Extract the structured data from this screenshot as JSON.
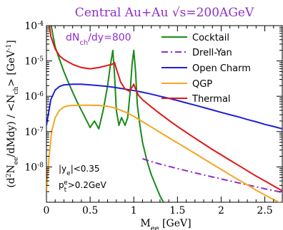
{
  "chart_data": {
    "type": "line",
    "title": "Central Au+Au   √s=200AGeV",
    "xlabel_main": "M",
    "xlabel_sub": "ee",
    "xlabel_unit": " [GeV]",
    "ylabel": "(d²N_ee/dMdy) / <N_ch> [GeV⁻¹]",
    "xlim": [
      0,
      2.7
    ],
    "ylim": [
      1e-09,
      0.0001
    ],
    "yscale": "log",
    "x_ticks": [
      "0",
      "0.5",
      "1",
      "1.5",
      "2",
      "2.5"
    ],
    "x_tick_values": [
      0,
      0.5,
      1,
      1.5,
      2,
      2.5
    ],
    "y_tick_values": [
      1e-08,
      1e-07,
      1e-06,
      1e-05,
      0.0001
    ],
    "annotation_dnch": "dN_ch/dy=800",
    "annotation_cut1": "|y_e|<0.35",
    "annotation_cut2": "p_t^e>0.2GeV",
    "legend_placement": "top-right",
    "series": [
      {
        "name": "Cocktail",
        "color": "#1a8a1a",
        "style": "solid",
        "x": [
          0.05,
          0.07,
          0.1,
          0.15,
          0.2,
          0.25,
          0.3,
          0.35,
          0.4,
          0.45,
          0.5,
          0.55,
          0.6,
          0.65,
          0.7,
          0.73,
          0.76,
          0.78,
          0.8,
          0.83,
          0.86,
          0.9,
          0.93,
          0.96,
          0.98,
          1.0,
          1.02,
          1.04,
          1.07,
          1.1,
          1.15,
          1.2,
          1.25,
          1.3,
          1.34
        ],
        "y": [
          0.00012,
          6e-05,
          2.5e-05,
          1.1e-05,
          5e-06,
          2.5e-06,
          1.3e-06,
          7e-07,
          4e-07,
          2.3e-07,
          1.3e-07,
          2e-07,
          1.2e-07,
          4e-07,
          2e-06,
          7e-06,
          2e-05,
          4e-06,
          4e-07,
          1.5e-07,
          2.5e-07,
          1.5e-07,
          2.5e-07,
          1.5e-06,
          8e-06,
          2e-05,
          5e-06,
          6e-07,
          1.5e-07,
          5e-08,
          1.5e-08,
          6e-09,
          3e-09,
          1.5e-09,
          1e-09
        ]
      },
      {
        "name": "Drell-Yan",
        "color": "#8e2ec9",
        "style": "dashdot",
        "x": [
          1.1,
          1.3,
          1.5,
          1.7,
          1.9,
          2.1,
          2.3,
          2.5,
          2.7
        ],
        "y": [
          1.7e-08,
          1.2e-08,
          9e-09,
          6.8e-09,
          5.2e-09,
          4e-09,
          3.1e-09,
          2.4e-09,
          1.9e-09
        ]
      },
      {
        "name": "Open Charm",
        "color": "#1f1fd6",
        "style": "solid",
        "x": [
          0.0,
          0.05,
          0.1,
          0.15,
          0.2,
          0.3,
          0.4,
          0.5,
          0.6,
          0.7,
          0.8,
          0.9,
          1.0,
          1.1,
          1.2,
          1.3,
          1.4,
          1.5,
          1.6,
          1.7,
          1.8,
          1.9,
          2.0,
          2.1,
          2.2,
          2.3,
          2.4,
          2.5,
          2.6,
          2.7
        ],
        "y": [
          1.5e-07,
          8e-07,
          1.5e-06,
          1.9e-06,
          2.1e-06,
          2.2e-06,
          2.2e-06,
          2.1e-06,
          2e-06,
          1.9e-06,
          1.75e-06,
          1.6e-06,
          1.45e-06,
          1.3e-06,
          1.15e-06,
          1e-06,
          8.8e-07,
          7.6e-07,
          6.5e-07,
          5.6e-07,
          4.8e-07,
          4.1e-07,
          3.5e-07,
          3e-07,
          2.6e-07,
          2.2e-07,
          1.9e-07,
          1.6e-07,
          1.4e-07,
          1.2e-07
        ]
      },
      {
        "name": "QGP",
        "color": "#f5a623",
        "style": "solid",
        "x": [
          0.0,
          0.03,
          0.06,
          0.1,
          0.15,
          0.2,
          0.25,
          0.3,
          0.4,
          0.5,
          0.6,
          0.7,
          0.8,
          0.9,
          1.0,
          1.1,
          1.2,
          1.3,
          1.4,
          1.5,
          1.6,
          1.7,
          1.8,
          1.9,
          2.0,
          2.1,
          2.2,
          2.3,
          2.4,
          2.5,
          2.6,
          2.7
        ],
        "y": [
          2e-09,
          2e-08,
          1e-07,
          2.5e-07,
          4e-07,
          5e-07,
          5.4e-07,
          5.5e-07,
          5.6e-07,
          5.6e-07,
          5.5e-07,
          5.2e-07,
          4.5e-07,
          3.6e-07,
          2.7e-07,
          1.9e-07,
          1.35e-07,
          9.5e-08,
          6.7e-08,
          4.8e-08,
          3.4e-08,
          2.4e-08,
          1.7e-08,
          1.2e-08,
          8.5e-09,
          6e-09,
          4.3e-09,
          3.1e-09,
          2.2e-09,
          1.6e-09,
          1.2e-09,
          9e-10
        ]
      },
      {
        "name": "Thermal",
        "color": "#e01616",
        "style": "solid",
        "x": [
          0.02,
          0.05,
          0.1,
          0.15,
          0.2,
          0.3,
          0.4,
          0.5,
          0.6,
          0.7,
          0.75,
          0.78,
          0.8,
          0.85,
          0.9,
          0.95,
          0.98,
          1.0,
          1.02,
          1.05,
          1.1,
          1.2,
          1.3,
          1.4,
          1.5,
          1.6,
          1.7,
          1.8,
          1.9,
          2.0,
          2.1,
          2.2,
          2.3,
          2.4,
          2.5,
          2.6,
          2.7
        ],
        "y": [
          0.00018,
          5e-05,
          2.2e-05,
          1.4e-05,
          1.1e-05,
          8e-06,
          6.5e-06,
          6e-06,
          6.5e-06,
          7.5e-06,
          8e-06,
          9e-06,
          6e-06,
          2.5e-06,
          1.6e-06,
          1.4e-06,
          1.8e-06,
          2.2e-06,
          1.6e-06,
          1.1e-06,
          8e-07,
          5e-07,
          3.2e-07,
          2.1e-07,
          1.4e-07,
          9.5e-08,
          6.5e-08,
          4.5e-08,
          3.1e-08,
          2.2e-08,
          1.55e-08,
          1.1e-08,
          7.8e-09,
          5.5e-09,
          4e-09,
          2.9e-09,
          2.1e-09
        ]
      }
    ]
  }
}
